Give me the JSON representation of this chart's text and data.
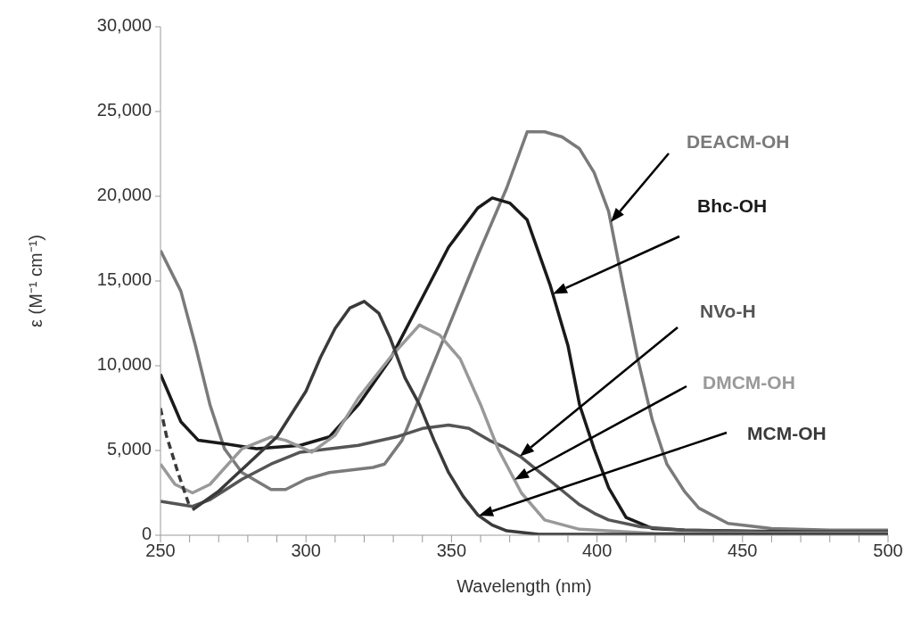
{
  "chart_data": {
    "type": "line",
    "xlabel": "Wavelength (nm)",
    "ylabel": "ε (M⁻¹ cm⁻¹)",
    "xlim": [
      250,
      500
    ],
    "xticks": [
      250,
      {
        "value": 260,
        "label": null
      },
      {
        "value": 270,
        "label": null
      },
      {
        "value": 280,
        "label": null
      },
      {
        "value": 290,
        "label": null
      },
      300,
      {
        "value": 310,
        "label": null
      },
      {
        "value": 320,
        "label": null
      },
      {
        "value": 330,
        "label": null
      },
      {
        "value": 340,
        "label": null
      },
      350,
      {
        "value": 360,
        "label": null
      },
      {
        "value": 370,
        "label": null
      },
      {
        "value": 380,
        "label": null
      },
      {
        "value": 390,
        "label": null
      },
      400,
      {
        "value": 410,
        "label": null
      },
      {
        "value": 420,
        "label": null
      },
      {
        "value": 430,
        "label": null
      },
      {
        "value": 440,
        "label": null
      },
      450,
      {
        "value": 460,
        "label": null
      },
      {
        "value": 470,
        "label": null
      },
      {
        "value": 480,
        "label": null
      },
      {
        "value": 490,
        "label": null
      },
      500
    ],
    "ylim": [
      0,
      30000
    ],
    "yticks": [
      0,
      {
        "value": 5000,
        "label": "5,000"
      },
      {
        "value": 10000,
        "label": "10,000"
      },
      {
        "value": 15000,
        "label": "15,000"
      },
      {
        "value": 20000,
        "label": "20,000"
      },
      {
        "value": 25000,
        "label": "25,000"
      },
      {
        "value": 30000,
        "label": "30,000"
      }
    ],
    "grid": false,
    "legend": false,
    "marker": "none",
    "line_style": "solid",
    "series": [
      {
        "name": "DEACM-OH",
        "color": "#7a7a7a",
        "x": [
          250,
          257,
          262,
          267,
          272,
          278,
          288,
          293,
          300,
          308,
          323,
          327,
          333,
          339,
          349,
          359,
          369,
          376,
          382,
          388,
          394,
          399,
          404,
          409,
          414,
          419,
          424,
          430,
          435,
          445,
          460,
          480,
          500
        ],
        "values": [
          16800,
          14400,
          11200,
          7700,
          5100,
          3700,
          2700,
          2700,
          3300,
          3700,
          4000,
          4200,
          5600,
          8100,
          12300,
          16500,
          20500,
          23800,
          23800,
          23500,
          22800,
          21400,
          19100,
          14700,
          10400,
          6800,
          4200,
          2600,
          1600,
          700,
          400,
          300,
          300
        ]
      },
      {
        "name": "Bhc-OH",
        "color": "#1a1a1a",
        "x": [
          250,
          257,
          263,
          272,
          283,
          298,
          308,
          318,
          329,
          339,
          349,
          359,
          364,
          370,
          376,
          384,
          390,
          394,
          399,
          404,
          410,
          419,
          430,
          450,
          475,
          500
        ],
        "values": [
          9500,
          6700,
          5600,
          5400,
          5100,
          5300,
          5800,
          7700,
          10400,
          13700,
          17000,
          19300,
          19900,
          19600,
          18600,
          14700,
          11200,
          7700,
          5100,
          2800,
          1050,
          400,
          300,
          250,
          200,
          200
        ]
      },
      {
        "name": "NVo-H",
        "color": "#555555",
        "x": [
          250,
          261,
          267,
          278,
          288,
          298,
          318,
          331,
          340,
          349,
          356,
          363,
          368,
          374,
          379,
          384,
          389,
          394,
          399,
          404,
          415,
          430,
          460,
          500
        ],
        "values": [
          2000,
          1700,
          2100,
          3300,
          4200,
          4900,
          5300,
          5800,
          6300,
          6500,
          6300,
          5600,
          5200,
          4600,
          3900,
          3200,
          2500,
          1800,
          1300,
          900,
          500,
          300,
          200,
          200
        ]
      },
      {
        "name": "DMCM-OH",
        "color": "#999999",
        "x": [
          250,
          255,
          261,
          267,
          278,
          288,
          293,
          302,
          310,
          318,
          329,
          339,
          346,
          353,
          360,
          366,
          374,
          382,
          394,
          420,
          500
        ],
        "values": [
          4200,
          3000,
          2500,
          3000,
          5100,
          5800,
          5600,
          4900,
          5900,
          8100,
          10500,
          12400,
          11800,
          10400,
          7700,
          5100,
          2500,
          900,
          350,
          100,
          100
        ]
      },
      {
        "name": "MCM-OH",
        "color": "#3a3a3a",
        "x": [
          261,
          270,
          280,
          290,
          300,
          305,
          310,
          315,
          320,
          325,
          329,
          334,
          339,
          344,
          349,
          354,
          359,
          364,
          369,
          380,
          500
        ],
        "values": [
          1500,
          2600,
          4200,
          5800,
          8500,
          10500,
          12200,
          13400,
          13800,
          13100,
          11600,
          9300,
          7700,
          5600,
          3700,
          2300,
          1200,
          600,
          260,
          50,
          50
        ]
      },
      {
        "color": "#3a3a3a",
        "line_style": "dashed",
        "x": [
          250,
          252,
          256,
          260
        ],
        "values": [
          7500,
          5900,
          3700,
          1700
        ]
      }
    ]
  }
}
